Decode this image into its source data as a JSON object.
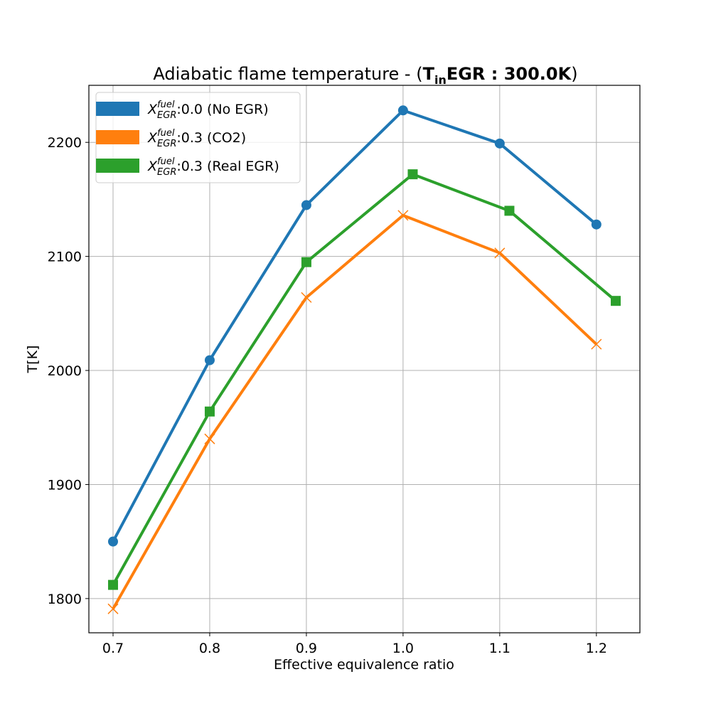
{
  "chart_data": {
    "type": "line",
    "title": {
      "prefix": "Adiabatic flame temperature - (",
      "bold_main": "T",
      "bold_sub": "in",
      "bold_rest": "EGR : 300.0K",
      "suffix": ")"
    },
    "xlabel": "Effective equivalence ratio",
    "ylabel": "T[K]",
    "xlim": [
      0.675,
      1.245
    ],
    "ylim": [
      1770,
      2250
    ],
    "xticks": [
      0.7,
      0.8,
      0.9,
      1.0,
      1.1,
      1.2
    ],
    "xtick_labels": [
      "0.7",
      "0.8",
      "0.9",
      "1.0",
      "1.1",
      "1.2"
    ],
    "yticks": [
      1800,
      1900,
      2000,
      2100,
      2200
    ],
    "ytick_labels": [
      "1800",
      "1900",
      "2000",
      "2100",
      "2200"
    ],
    "grid": true,
    "legend_position": "top-left",
    "series": [
      {
        "name": {
          "var": "X",
          "sup": "fuel",
          "sub": "EGR",
          "text": ":0.0 (No EGR)"
        },
        "color": "#1f77b4",
        "marker": "circle",
        "x": [
          0.7,
          0.8,
          0.9,
          1.0,
          1.1,
          1.2
        ],
        "y": [
          1850,
          2009,
          2145,
          2228,
          2199,
          2128
        ]
      },
      {
        "name": {
          "var": "X",
          "sup": "fuel",
          "sub": "EGR",
          "text": ":0.3 (CO2)"
        },
        "color": "#ff7f0e",
        "marker": "x",
        "x": [
          0.7,
          0.8,
          0.9,
          1.0,
          1.1,
          1.2
        ],
        "y": [
          1791,
          1940,
          2064,
          2136,
          2103,
          2023
        ]
      },
      {
        "name": {
          "var": "X",
          "sup": "fuel",
          "sub": "EGR",
          "text": ":0.3 (Real EGR)"
        },
        "color": "#2ca02c",
        "marker": "square",
        "x": [
          0.7,
          0.8,
          0.9,
          1.01,
          1.11,
          1.22
        ],
        "y": [
          1812,
          1964,
          2095,
          2172,
          2140,
          2061
        ]
      }
    ]
  }
}
